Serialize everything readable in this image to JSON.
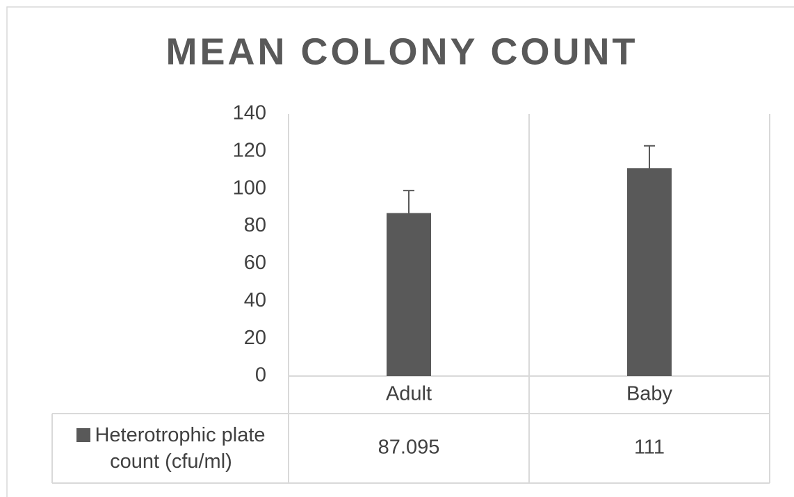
{
  "chart_data": {
    "type": "bar",
    "title": "MEAN COLONY COUNT",
    "categories": [
      "Adult",
      "Baby"
    ],
    "series": [
      {
        "name": "Heterotrophic plate count (cfu/ml)",
        "color": "#595959",
        "values": [
          87.095,
          111
        ],
        "errors": [
          12,
          12
        ]
      }
    ],
    "ylim": [
      0,
      140
    ],
    "yticks": [
      0,
      20,
      40,
      60,
      80,
      100,
      120,
      140
    ],
    "grid": false,
    "data_table": true
  }
}
